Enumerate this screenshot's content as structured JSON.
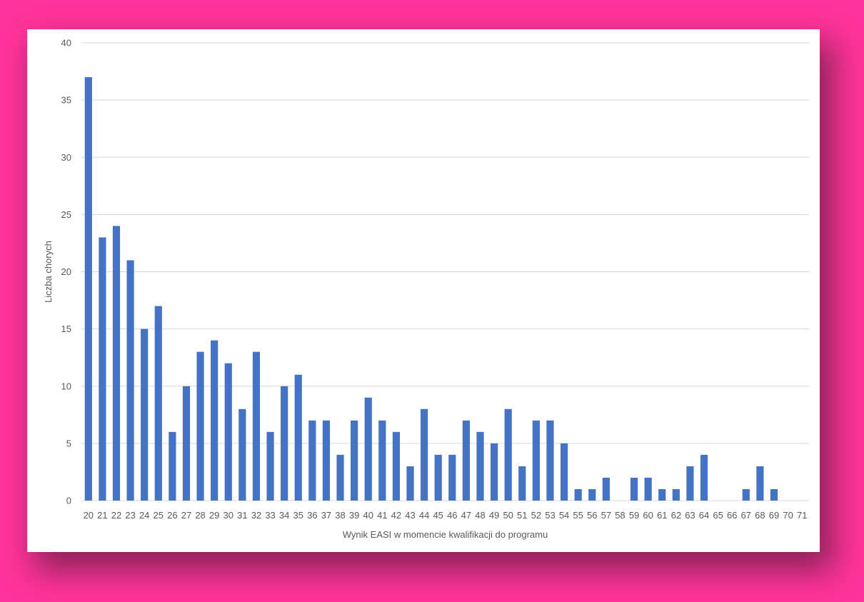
{
  "chart_data": {
    "type": "bar",
    "title": "",
    "xlabel": "Wynik EASI w momencie kwalifikacji do programu",
    "ylabel": "Liczba chorych",
    "ylim": [
      0,
      40
    ],
    "yticks": [
      0,
      5,
      10,
      15,
      20,
      25,
      30,
      35,
      40
    ],
    "grid": true,
    "legend": "none",
    "bar_color": "#4472c4",
    "categories": [
      "20",
      "21",
      "22",
      "23",
      "24",
      "25",
      "26",
      "27",
      "28",
      "29",
      "30",
      "31",
      "32",
      "33",
      "34",
      "35",
      "36",
      "37",
      "38",
      "39",
      "40",
      "41",
      "42",
      "43",
      "44",
      "45",
      "46",
      "47",
      "48",
      "49",
      "50",
      "51",
      "52",
      "53",
      "54",
      "55",
      "56",
      "57",
      "58",
      "59",
      "60",
      "61",
      "62",
      "63",
      "64",
      "65",
      "66",
      "67",
      "68",
      "69",
      "70",
      "71"
    ],
    "values": [
      37,
      23,
      24,
      21,
      15,
      17,
      6,
      10,
      13,
      14,
      12,
      8,
      13,
      6,
      10,
      11,
      7,
      7,
      4,
      7,
      9,
      7,
      6,
      3,
      8,
      4,
      4,
      7,
      6,
      5,
      8,
      3,
      7,
      7,
      5,
      1,
      1,
      2,
      0,
      2,
      2,
      1,
      1,
      3,
      4,
      0,
      0,
      1,
      3,
      1,
      0,
      0
    ]
  }
}
